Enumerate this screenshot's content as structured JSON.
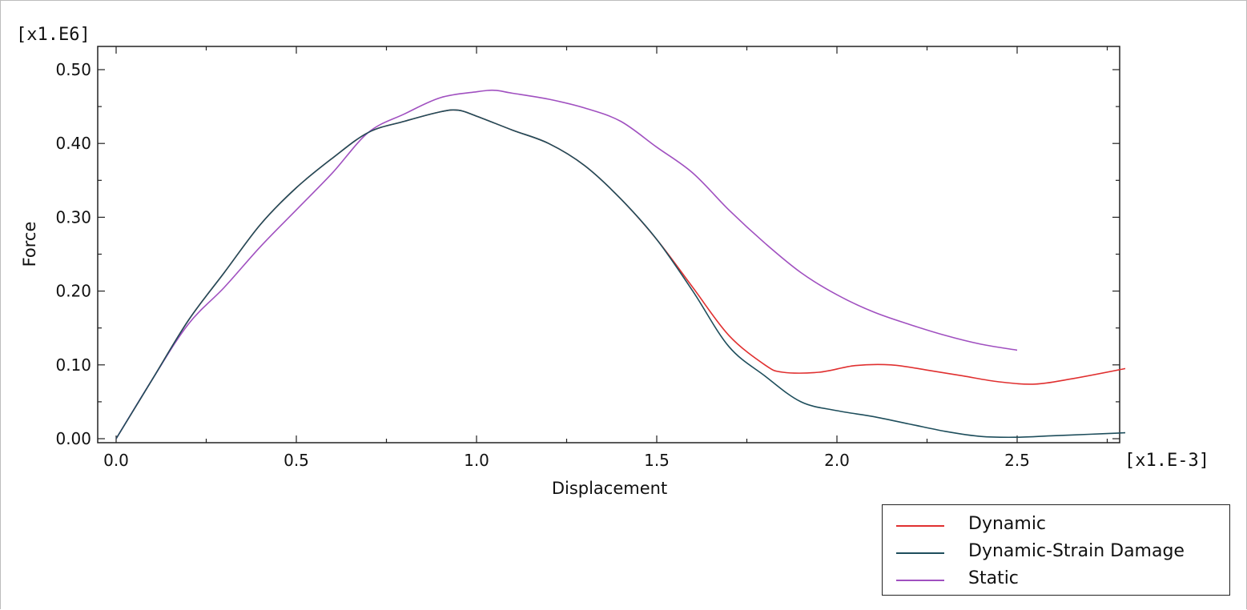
{
  "chart_data": {
    "type": "line",
    "xlabel": "Displacement",
    "ylabel": "Force",
    "x_multiplier": "[x1.E-3]",
    "y_multiplier": "[x1.E6]",
    "xlim": [
      0,
      2.8
    ],
    "ylim": [
      0,
      0.5
    ],
    "x_ticks": [
      {
        "value": 0.0,
        "label": "0.0"
      },
      {
        "value": 0.5,
        "label": "0.5"
      },
      {
        "value": 1.0,
        "label": "1.0"
      },
      {
        "value": 1.5,
        "label": "1.5"
      },
      {
        "value": 2.0,
        "label": "2.0"
      },
      {
        "value": 2.5,
        "label": "2.5"
      }
    ],
    "y_ticks": [
      {
        "value": 0.0,
        "label": "0.00"
      },
      {
        "value": 0.1,
        "label": "0.10"
      },
      {
        "value": 0.2,
        "label": "0.20"
      },
      {
        "value": 0.3,
        "label": "0.30"
      },
      {
        "value": 0.4,
        "label": "0.40"
      },
      {
        "value": 0.5,
        "label": "0.50"
      }
    ],
    "grid": false,
    "legend_position": "bottom-right",
    "series": [
      {
        "name": "Dynamic",
        "color": "#e03030",
        "points": [
          [
            0.0,
            0.0
          ],
          [
            0.1,
            0.08
          ],
          [
            0.2,
            0.16
          ],
          [
            0.3,
            0.225
          ],
          [
            0.4,
            0.29
          ],
          [
            0.5,
            0.34
          ],
          [
            0.6,
            0.38
          ],
          [
            0.7,
            0.415
          ],
          [
            0.8,
            0.43
          ],
          [
            0.9,
            0.443
          ],
          [
            0.95,
            0.445
          ],
          [
            1.0,
            0.437
          ],
          [
            1.1,
            0.418
          ],
          [
            1.2,
            0.4
          ],
          [
            1.3,
            0.37
          ],
          [
            1.4,
            0.325
          ],
          [
            1.5,
            0.27
          ],
          [
            1.6,
            0.205
          ],
          [
            1.7,
            0.14
          ],
          [
            1.8,
            0.1
          ],
          [
            1.85,
            0.09
          ],
          [
            1.95,
            0.09
          ],
          [
            2.05,
            0.099
          ],
          [
            2.15,
            0.1
          ],
          [
            2.25,
            0.093
          ],
          [
            2.35,
            0.085
          ],
          [
            2.45,
            0.077
          ],
          [
            2.55,
            0.074
          ],
          [
            2.65,
            0.081
          ],
          [
            2.8,
            0.095
          ]
        ]
      },
      {
        "name": "Dynamic-Strain Damage",
        "color": "#1e4e5c",
        "points": [
          [
            0.0,
            0.0
          ],
          [
            0.1,
            0.08
          ],
          [
            0.2,
            0.16
          ],
          [
            0.3,
            0.225
          ],
          [
            0.4,
            0.29
          ],
          [
            0.5,
            0.34
          ],
          [
            0.6,
            0.38
          ],
          [
            0.7,
            0.415
          ],
          [
            0.8,
            0.43
          ],
          [
            0.9,
            0.443
          ],
          [
            0.95,
            0.445
          ],
          [
            1.0,
            0.437
          ],
          [
            1.1,
            0.418
          ],
          [
            1.2,
            0.4
          ],
          [
            1.3,
            0.37
          ],
          [
            1.4,
            0.325
          ],
          [
            1.5,
            0.27
          ],
          [
            1.6,
            0.2
          ],
          [
            1.7,
            0.125
          ],
          [
            1.8,
            0.085
          ],
          [
            1.9,
            0.05
          ],
          [
            2.0,
            0.038
          ],
          [
            2.1,
            0.03
          ],
          [
            2.2,
            0.02
          ],
          [
            2.3,
            0.01
          ],
          [
            2.4,
            0.003
          ],
          [
            2.5,
            0.002
          ],
          [
            2.6,
            0.004
          ],
          [
            2.7,
            0.006
          ],
          [
            2.8,
            0.008
          ]
        ]
      },
      {
        "name": "Static",
        "color": "#a050c0",
        "points": [
          [
            0.0,
            0.0
          ],
          [
            0.1,
            0.08
          ],
          [
            0.2,
            0.155
          ],
          [
            0.3,
            0.205
          ],
          [
            0.4,
            0.26
          ],
          [
            0.5,
            0.31
          ],
          [
            0.6,
            0.36
          ],
          [
            0.7,
            0.415
          ],
          [
            0.8,
            0.44
          ],
          [
            0.9,
            0.462
          ],
          [
            1.0,
            0.47
          ],
          [
            1.05,
            0.472
          ],
          [
            1.1,
            0.468
          ],
          [
            1.2,
            0.46
          ],
          [
            1.3,
            0.448
          ],
          [
            1.4,
            0.43
          ],
          [
            1.5,
            0.395
          ],
          [
            1.6,
            0.36
          ],
          [
            1.7,
            0.31
          ],
          [
            1.8,
            0.265
          ],
          [
            1.9,
            0.225
          ],
          [
            2.0,
            0.195
          ],
          [
            2.1,
            0.172
          ],
          [
            2.2,
            0.155
          ],
          [
            2.3,
            0.14
          ],
          [
            2.4,
            0.128
          ],
          [
            2.5,
            0.12
          ]
        ]
      }
    ]
  }
}
